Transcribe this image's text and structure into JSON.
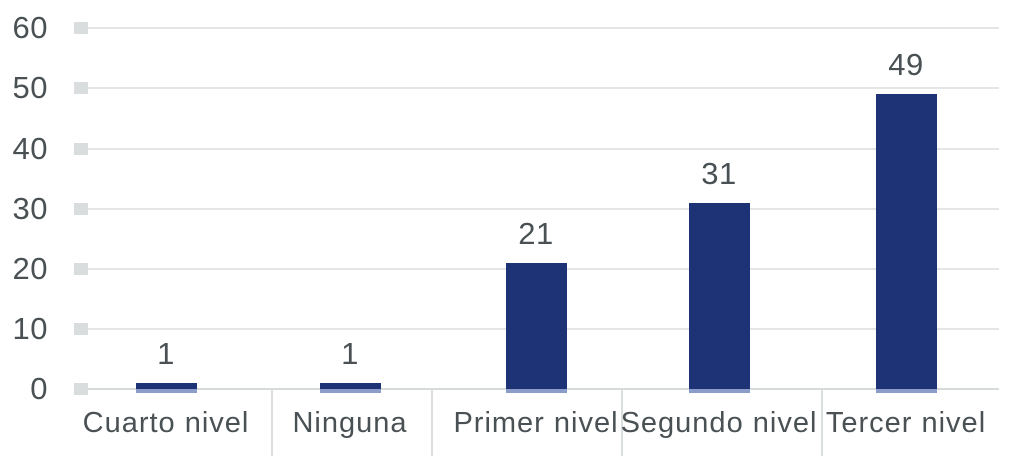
{
  "chart_data": {
    "type": "bar",
    "title": "",
    "xlabel": "",
    "ylabel": "",
    "categories": [
      "Cuarto nivel",
      "Ninguna",
      "Primer nivel",
      "Segundo nivel",
      "Tercer nivel"
    ],
    "values": [
      1,
      1,
      21,
      31,
      49
    ],
    "data_labels": [
      "1",
      "1",
      "21",
      "31",
      "49"
    ],
    "yticks": [
      0,
      10,
      20,
      30,
      40,
      50,
      60
    ],
    "ylim": [
      0,
      60
    ],
    "grid": "horizontal",
    "legend": "none",
    "colors": {
      "bar": "#1E3276",
      "bar_base_edge": "#8C9CC8",
      "text": "#4A5154",
      "gridline": "#E4E6E6",
      "axis_line": "#D7DADA",
      "tick_square": "#DADDDD",
      "divider": "#DBDEDE",
      "background": "#FFFFFF"
    }
  }
}
